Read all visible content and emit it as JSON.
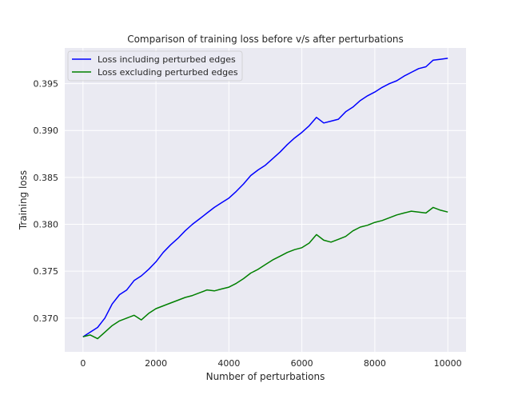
{
  "chart_data": {
    "type": "line",
    "title": "Comparison of training loss before v/s after perturbations",
    "xlabel": "Number of perturbations",
    "ylabel": "Training loss",
    "xlim": [
      -500,
      10500
    ],
    "ylim": [
      0.3664,
      0.3988
    ],
    "x_ticks": [
      0,
      2000,
      4000,
      6000,
      8000,
      10000
    ],
    "x_tick_labels": [
      "0",
      "2000",
      "4000",
      "6000",
      "8000",
      "10000"
    ],
    "y_ticks": [
      0.37,
      0.375,
      0.38,
      0.385,
      0.39,
      0.395
    ],
    "y_tick_labels": [
      "0.370",
      "0.375",
      "0.380",
      "0.385",
      "0.390",
      "0.395"
    ],
    "grid": true,
    "legend_position": "top-left",
    "series": [
      {
        "name": "Loss including perturbed edges",
        "color": "#0000ff",
        "x": [
          0,
          200,
          400,
          600,
          800,
          1000,
          1200,
          1400,
          1600,
          1800,
          2000,
          2200,
          2400,
          2600,
          2800,
          3000,
          3200,
          3400,
          3600,
          3800,
          4000,
          4200,
          4400,
          4600,
          4800,
          5000,
          5200,
          5400,
          5600,
          5800,
          6000,
          6200,
          6400,
          6600,
          6800,
          7000,
          7200,
          7400,
          7600,
          7800,
          8000,
          8200,
          8400,
          8600,
          8800,
          9000,
          9200,
          9400,
          9600,
          9800,
          10000
        ],
        "y": [
          0.368,
          0.3685,
          0.369,
          0.37,
          0.3715,
          0.3725,
          0.373,
          0.374,
          0.3745,
          0.3752,
          0.376,
          0.377,
          0.3778,
          0.3785,
          0.3793,
          0.38,
          0.3806,
          0.3812,
          0.3818,
          0.3823,
          0.3828,
          0.3835,
          0.3843,
          0.3852,
          0.3858,
          0.3863,
          0.387,
          0.3877,
          0.3885,
          0.3892,
          0.3898,
          0.3905,
          0.3914,
          0.3908,
          0.391,
          0.3912,
          0.392,
          0.3925,
          0.3932,
          0.3937,
          0.3941,
          0.3946,
          0.395,
          0.3953,
          0.3958,
          0.3962,
          0.3966,
          0.3968,
          0.3975,
          0.3976,
          0.3977
        ]
      },
      {
        "name": "Loss excluding perturbed edges",
        "color": "#008000",
        "x": [
          0,
          200,
          400,
          600,
          800,
          1000,
          1200,
          1400,
          1600,
          1800,
          2000,
          2200,
          2400,
          2600,
          2800,
          3000,
          3200,
          3400,
          3600,
          3800,
          4000,
          4200,
          4400,
          4600,
          4800,
          5000,
          5200,
          5400,
          5600,
          5800,
          6000,
          6200,
          6400,
          6600,
          6800,
          7000,
          7200,
          7400,
          7600,
          7800,
          8000,
          8200,
          8400,
          8600,
          8800,
          9000,
          9200,
          9400,
          9600,
          9800,
          10000
        ],
        "y": [
          0.368,
          0.3682,
          0.3678,
          0.3685,
          0.3692,
          0.3697,
          0.37,
          0.3703,
          0.3698,
          0.3705,
          0.371,
          0.3713,
          0.3716,
          0.3719,
          0.3722,
          0.3724,
          0.3727,
          0.373,
          0.3729,
          0.3731,
          0.3733,
          0.3737,
          0.3742,
          0.3748,
          0.3752,
          0.3757,
          0.3762,
          0.3766,
          0.377,
          0.3773,
          0.3775,
          0.378,
          0.3789,
          0.3783,
          0.3781,
          0.3784,
          0.3787,
          0.3793,
          0.3797,
          0.3799,
          0.3802,
          0.3804,
          0.3807,
          0.381,
          0.3812,
          0.3814,
          0.3813,
          0.3812,
          0.3818,
          0.3815,
          0.3813
        ]
      }
    ]
  }
}
